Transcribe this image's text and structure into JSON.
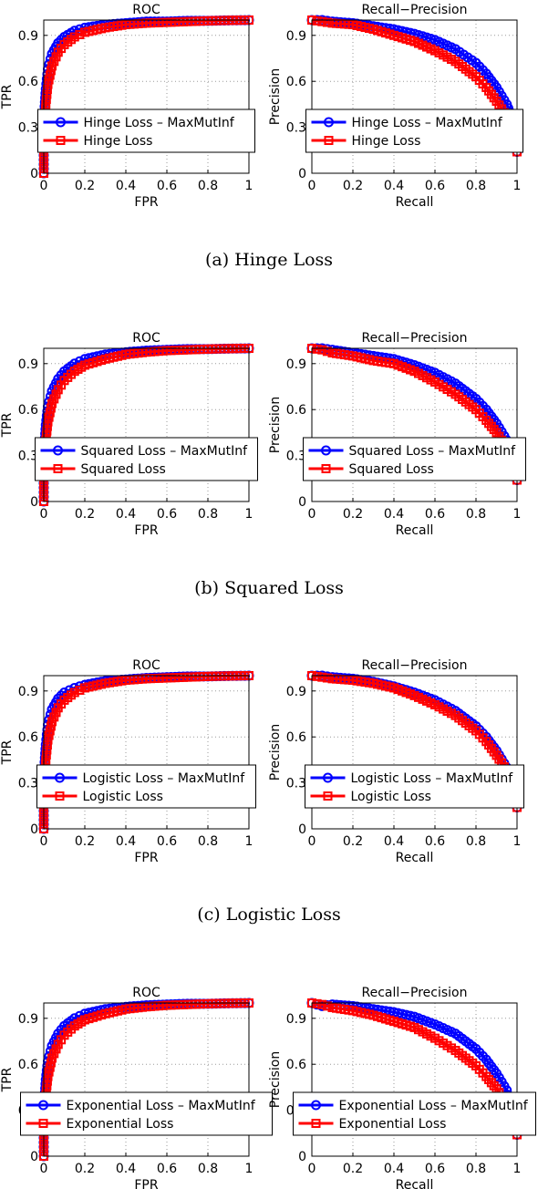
{
  "panels": [
    {
      "caption": "(a) Hinge Loss",
      "series_names": [
        "Hinge Loss – MaxMutInf",
        "Hinge Loss"
      ]
    },
    {
      "caption": "(b) Squared Loss",
      "series_names": [
        "Squared Loss – MaxMutInf",
        "Squared Loss"
      ]
    },
    {
      "caption": "(c) Logistic Loss",
      "series_names": [
        "Logistic Loss – MaxMutInf",
        "Logistic Loss"
      ]
    },
    {
      "caption": "(d)",
      "series_names": [
        "Exponential Loss – MaxMutInf",
        "Exponential Loss"
      ]
    }
  ],
  "colors": {
    "max_mut_inf": "#0000ff",
    "baseline": "#ff0000",
    "grid": "#9a9a9a"
  },
  "chart_data": [
    {
      "type": "line",
      "title": "ROC",
      "xlabel": "FPR",
      "ylabel": "TPR",
      "xlim": [
        0,
        1
      ],
      "ylim": [
        0,
        1
      ],
      "xticks": [
        "0",
        "0.2",
        "0.4",
        "0.6",
        "0.8",
        "1"
      ],
      "yticks": [
        "0",
        "0.3",
        "0.6",
        "0.9"
      ],
      "grid": true,
      "legend": "lower-center",
      "series": [
        {
          "name": "Hinge Loss – MaxMutInf",
          "marker": "circle",
          "x": [
            0,
            0,
            0.01,
            0.02,
            0.04,
            0.07,
            0.1,
            0.15,
            0.2,
            0.3,
            0.4,
            0.5,
            0.6,
            0.7,
            0.8,
            0.9,
            1
          ],
          "y": [
            0,
            0.35,
            0.55,
            0.68,
            0.78,
            0.85,
            0.89,
            0.93,
            0.95,
            0.97,
            0.98,
            0.99,
            0.99,
            0.995,
            0.995,
            0.998,
            1
          ]
        },
        {
          "name": "Hinge Loss",
          "marker": "square",
          "x": [
            0,
            0,
            0.01,
            0.02,
            0.04,
            0.07,
            0.1,
            0.15,
            0.2,
            0.3,
            0.4,
            0.5,
            0.6,
            0.7,
            0.8,
            0.9,
            1
          ],
          "y": [
            0,
            0.25,
            0.45,
            0.58,
            0.7,
            0.79,
            0.84,
            0.89,
            0.92,
            0.95,
            0.97,
            0.98,
            0.985,
            0.99,
            0.995,
            0.998,
            1
          ]
        }
      ]
    },
    {
      "type": "line",
      "title": "Recall−Precision",
      "xlabel": "Recall",
      "ylabel": "Precision",
      "xlim": [
        0,
        1
      ],
      "ylim": [
        0,
        1
      ],
      "xticks": [
        "0",
        "0.2",
        "0.4",
        "0.6",
        "0.8",
        "1"
      ],
      "yticks": [
        "0",
        "0.3",
        "0.6",
        "0.9"
      ],
      "grid": true,
      "legend": "lower-center",
      "series": [
        {
          "name": "Hinge Loss – MaxMutInf",
          "marker": "circle",
          "x": [
            0,
            0.05,
            0.1,
            0.2,
            0.3,
            0.4,
            0.5,
            0.6,
            0.7,
            0.8,
            0.85,
            0.9,
            0.95,
            0.98,
            1
          ],
          "y": [
            1,
            1,
            0.99,
            0.98,
            0.96,
            0.94,
            0.91,
            0.87,
            0.81,
            0.72,
            0.65,
            0.56,
            0.45,
            0.35,
            0.14
          ]
        },
        {
          "name": "Hinge Loss",
          "marker": "square",
          "x": [
            0,
            0.05,
            0.1,
            0.2,
            0.3,
            0.4,
            0.5,
            0.6,
            0.7,
            0.8,
            0.85,
            0.9,
            0.95,
            0.98,
            1
          ],
          "y": [
            1,
            0.99,
            0.98,
            0.97,
            0.94,
            0.9,
            0.86,
            0.8,
            0.73,
            0.63,
            0.56,
            0.47,
            0.37,
            0.28,
            0.14
          ]
        }
      ]
    },
    {
      "type": "line",
      "title": "ROC",
      "xlabel": "FPR",
      "ylabel": "TPR",
      "xlim": [
        0,
        1
      ],
      "ylim": [
        0,
        1
      ],
      "xticks": [
        "0",
        "0.2",
        "0.4",
        "0.6",
        "0.8",
        "1"
      ],
      "yticks": [
        "0",
        "0.3",
        "0.6",
        "0.9"
      ],
      "grid": true,
      "legend": "lower-center",
      "series": [
        {
          "name": "Squared Loss – MaxMutInf",
          "marker": "circle",
          "x": [
            0,
            0,
            0.01,
            0.02,
            0.04,
            0.07,
            0.1,
            0.15,
            0.2,
            0.3,
            0.4,
            0.5,
            0.6,
            0.7,
            0.8,
            0.9,
            1
          ],
          "y": [
            0,
            0.3,
            0.5,
            0.62,
            0.72,
            0.8,
            0.85,
            0.9,
            0.93,
            0.96,
            0.975,
            0.985,
            0.99,
            0.995,
            0.995,
            0.998,
            1
          ]
        },
        {
          "name": "Squared Loss",
          "marker": "square",
          "x": [
            0,
            0,
            0.01,
            0.02,
            0.04,
            0.07,
            0.1,
            0.15,
            0.2,
            0.3,
            0.4,
            0.5,
            0.6,
            0.7,
            0.8,
            0.9,
            1
          ],
          "y": [
            0,
            0.22,
            0.4,
            0.52,
            0.64,
            0.73,
            0.79,
            0.85,
            0.89,
            0.93,
            0.96,
            0.975,
            0.985,
            0.99,
            0.995,
            0.998,
            1
          ]
        }
      ]
    },
    {
      "type": "line",
      "title": "Recall−Precision",
      "xlabel": "Recall",
      "ylabel": "Precision",
      "xlim": [
        0,
        1
      ],
      "ylim": [
        0,
        1
      ],
      "xticks": [
        "0",
        "0.2",
        "0.4",
        "0.6",
        "0.8",
        "1"
      ],
      "yticks": [
        "0",
        "0.3",
        "0.6",
        "0.9"
      ],
      "grid": true,
      "legend": "lower-center",
      "series": [
        {
          "name": "Squared Loss – MaxMutInf",
          "marker": "circle",
          "x": [
            0,
            0.05,
            0.1,
            0.2,
            0.3,
            0.4,
            0.5,
            0.6,
            0.7,
            0.8,
            0.85,
            0.9,
            0.95,
            1
          ],
          "y": [
            1,
            1,
            0.99,
            0.97,
            0.95,
            0.93,
            0.89,
            0.84,
            0.77,
            0.67,
            0.6,
            0.51,
            0.4,
            0.14
          ]
        },
        {
          "name": "Squared Loss",
          "marker": "square",
          "x": [
            0,
            0.05,
            0.1,
            0.2,
            0.3,
            0.4,
            0.5,
            0.6,
            0.7,
            0.8,
            0.85,
            0.9,
            0.95,
            1
          ],
          "y": [
            1,
            0.99,
            0.97,
            0.95,
            0.92,
            0.9,
            0.85,
            0.78,
            0.7,
            0.6,
            0.53,
            0.45,
            0.35,
            0.14
          ]
        }
      ]
    },
    {
      "type": "line",
      "title": "ROC",
      "xlabel": "FPR",
      "ylabel": "TPR",
      "xlim": [
        0,
        1
      ],
      "ylim": [
        0,
        1
      ],
      "xticks": [
        "0",
        "0.2",
        "0.4",
        "0.6",
        "0.8",
        "1"
      ],
      "yticks": [
        "0",
        "0.3",
        "0.6",
        "0.9"
      ],
      "grid": true,
      "legend": "lower-center",
      "series": [
        {
          "name": "Logistic Loss – MaxMutInf",
          "marker": "circle",
          "x": [
            0,
            0,
            0.01,
            0.02,
            0.04,
            0.07,
            0.1,
            0.15,
            0.2,
            0.3,
            0.4,
            0.5,
            0.6,
            0.7,
            0.8,
            0.9,
            1
          ],
          "y": [
            0,
            0.35,
            0.55,
            0.68,
            0.78,
            0.85,
            0.89,
            0.92,
            0.94,
            0.965,
            0.975,
            0.985,
            0.99,
            0.995,
            0.995,
            0.998,
            1
          ]
        },
        {
          "name": "Logistic Loss",
          "marker": "square",
          "x": [
            0,
            0,
            0.01,
            0.02,
            0.04,
            0.07,
            0.1,
            0.15,
            0.2,
            0.3,
            0.4,
            0.5,
            0.6,
            0.7,
            0.8,
            0.9,
            1
          ],
          "y": [
            0,
            0.25,
            0.45,
            0.58,
            0.7,
            0.79,
            0.84,
            0.89,
            0.92,
            0.95,
            0.97,
            0.98,
            0.985,
            0.99,
            0.995,
            0.998,
            1
          ]
        }
      ]
    },
    {
      "type": "line",
      "title": "Recall−Precision",
      "xlabel": "Recall",
      "ylabel": "Precision",
      "xlim": [
        0,
        1
      ],
      "ylim": [
        0,
        1
      ],
      "xticks": [
        "0",
        "0.2",
        "0.4",
        "0.6",
        "0.8",
        "1"
      ],
      "yticks": [
        "0",
        "0.3",
        "0.6",
        "0.9"
      ],
      "grid": true,
      "legend": "lower-center",
      "series": [
        {
          "name": "Logistic Loss – MaxMutInf",
          "marker": "circle",
          "x": [
            0,
            0.05,
            0.1,
            0.2,
            0.3,
            0.4,
            0.5,
            0.6,
            0.7,
            0.8,
            0.85,
            0.9,
            0.95,
            1
          ],
          "y": [
            1,
            1,
            0.99,
            0.98,
            0.96,
            0.93,
            0.89,
            0.84,
            0.77,
            0.67,
            0.6,
            0.51,
            0.4,
            0.14
          ]
        },
        {
          "name": "Logistic Loss",
          "marker": "square",
          "x": [
            0,
            0.05,
            0.1,
            0.2,
            0.3,
            0.4,
            0.5,
            0.6,
            0.7,
            0.8,
            0.85,
            0.9,
            0.95,
            1
          ],
          "y": [
            1,
            0.99,
            0.98,
            0.97,
            0.95,
            0.92,
            0.87,
            0.81,
            0.74,
            0.64,
            0.57,
            0.48,
            0.38,
            0.14
          ]
        }
      ]
    },
    {
      "type": "line",
      "title": "ROC",
      "xlabel": "FPR",
      "ylabel": "TPR",
      "xlim": [
        0,
        1
      ],
      "ylim": [
        0,
        1
      ],
      "xticks": [
        "0",
        "0.2",
        "0.4",
        "0.6",
        "0.8",
        "1"
      ],
      "yticks": [
        "0",
        "0.3",
        "0.6",
        "0.9"
      ],
      "grid": true,
      "legend": "lower-center",
      "series": [
        {
          "name": "Exponential Loss – MaxMutInf",
          "marker": "circle",
          "x": [
            0,
            0,
            0.01,
            0.02,
            0.04,
            0.07,
            0.1,
            0.15,
            0.2,
            0.3,
            0.4,
            0.5,
            0.6,
            0.7,
            0.8,
            0.9,
            1
          ],
          "y": [
            0,
            0.3,
            0.5,
            0.62,
            0.72,
            0.8,
            0.85,
            0.9,
            0.93,
            0.96,
            0.975,
            0.985,
            0.99,
            0.995,
            0.995,
            0.998,
            1
          ]
        },
        {
          "name": "Exponential Loss",
          "marker": "square",
          "x": [
            0,
            0,
            0.01,
            0.02,
            0.04,
            0.07,
            0.1,
            0.15,
            0.2,
            0.3,
            0.4,
            0.5,
            0.6,
            0.7,
            0.8,
            0.9,
            1
          ],
          "y": [
            0,
            0.22,
            0.4,
            0.52,
            0.64,
            0.73,
            0.79,
            0.85,
            0.89,
            0.93,
            0.96,
            0.975,
            0.985,
            0.99,
            0.995,
            0.998,
            1
          ]
        }
      ]
    },
    {
      "type": "line",
      "title": "Recall−Precision",
      "xlabel": "Recall",
      "ylabel": "Precision",
      "xlim": [
        0,
        1
      ],
      "ylim": [
        0,
        1
      ],
      "xticks": [
        "0",
        "0.2",
        "0.4",
        "0.6",
        "0.8",
        "1"
      ],
      "yticks": [
        "0",
        "0.3",
        "0.6",
        "0.9"
      ],
      "grid": true,
      "legend": "lower-center",
      "series": [
        {
          "name": "Exponential Loss – MaxMutInf",
          "marker": "circle",
          "x": [
            0,
            0.05,
            0.1,
            0.2,
            0.3,
            0.4,
            0.5,
            0.6,
            0.7,
            0.8,
            0.85,
            0.9,
            0.95,
            1
          ],
          "y": [
            1,
            0.98,
            0.99,
            0.98,
            0.96,
            0.94,
            0.91,
            0.86,
            0.8,
            0.7,
            0.63,
            0.54,
            0.43,
            0.14
          ]
        },
        {
          "name": "Exponential Loss",
          "marker": "square",
          "x": [
            0,
            0.05,
            0.1,
            0.2,
            0.3,
            0.4,
            0.5,
            0.6,
            0.7,
            0.8,
            0.85,
            0.9,
            0.95,
            1
          ],
          "y": [
            1,
            0.99,
            0.97,
            0.95,
            0.92,
            0.88,
            0.84,
            0.77,
            0.69,
            0.59,
            0.52,
            0.44,
            0.34,
            0.14
          ]
        }
      ]
    }
  ]
}
